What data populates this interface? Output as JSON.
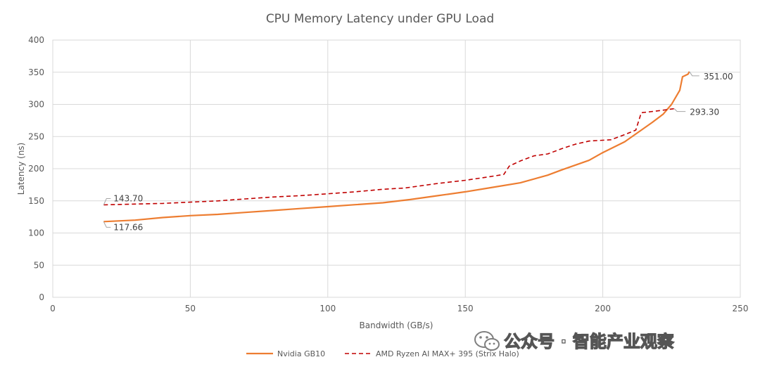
{
  "chart_data": {
    "type": "line",
    "title": "CPU Memory Latency under GPU Load",
    "xlabel": "Bandwidth (GB/s)",
    "ylabel": "Latency (ns)",
    "xlim": [
      0,
      250
    ],
    "ylim": [
      0,
      400
    ],
    "x_ticks": [
      "0",
      "50",
      "100",
      "150",
      "200",
      "250"
    ],
    "y_ticks": [
      "0",
      "50",
      "100",
      "150",
      "200",
      "250",
      "300",
      "350",
      "400"
    ],
    "grid": true,
    "legend_position": "bottom",
    "series": [
      {
        "name": "Nvidia GB10",
        "color": "#ED7D31",
        "style": "solid",
        "points": [
          [
            18.5,
            117.66
          ],
          [
            30,
            120
          ],
          [
            40,
            124
          ],
          [
            50,
            127
          ],
          [
            60,
            129
          ],
          [
            70,
            132
          ],
          [
            80,
            135
          ],
          [
            90,
            138
          ],
          [
            100,
            141
          ],
          [
            110,
            144
          ],
          [
            120,
            147
          ],
          [
            130,
            152
          ],
          [
            140,
            158
          ],
          [
            150,
            164
          ],
          [
            160,
            171
          ],
          [
            170,
            178
          ],
          [
            180,
            190
          ],
          [
            185,
            198
          ],
          [
            195,
            213
          ],
          [
            200,
            225
          ],
          [
            208,
            242
          ],
          [
            214,
            260
          ],
          [
            218,
            272
          ],
          [
            222,
            285
          ],
          [
            225,
            300
          ],
          [
            228,
            322
          ],
          [
            229,
            343
          ],
          [
            231,
            347
          ],
          [
            231.5,
            351.0
          ]
        ]
      },
      {
        "name": "AMD Ryzen AI MAX+ 395 (Strix Halo)",
        "color": "#C00000",
        "style": "dashed",
        "points": [
          [
            18.5,
            143.7
          ],
          [
            30,
            145
          ],
          [
            40,
            146
          ],
          [
            50,
            148
          ],
          [
            60,
            150
          ],
          [
            70,
            153
          ],
          [
            80,
            156
          ],
          [
            90,
            158
          ],
          [
            100,
            161
          ],
          [
            110,
            164
          ],
          [
            120,
            168
          ],
          [
            128,
            170
          ],
          [
            140,
            177
          ],
          [
            150,
            182
          ],
          [
            158,
            187
          ],
          [
            164,
            191
          ],
          [
            166,
            204
          ],
          [
            170,
            212
          ],
          [
            175,
            220
          ],
          [
            180,
            223
          ],
          [
            185,
            231
          ],
          [
            190,
            238
          ],
          [
            195,
            243
          ],
          [
            203,
            245
          ],
          [
            208,
            253
          ],
          [
            212,
            260
          ],
          [
            214,
            287
          ],
          [
            220,
            290
          ],
          [
            226,
            293.3
          ]
        ]
      }
    ],
    "annotations": [
      {
        "series": 0,
        "point": "first",
        "text": "117.66"
      },
      {
        "series": 0,
        "point": "last",
        "text": "351.00"
      },
      {
        "series": 1,
        "point": "first",
        "text": "143.70"
      },
      {
        "series": 1,
        "point": "last",
        "text": "293.30"
      }
    ]
  },
  "watermark": {
    "text": "公众号 · 智能产业观察",
    "icon": "wechat-icon"
  }
}
